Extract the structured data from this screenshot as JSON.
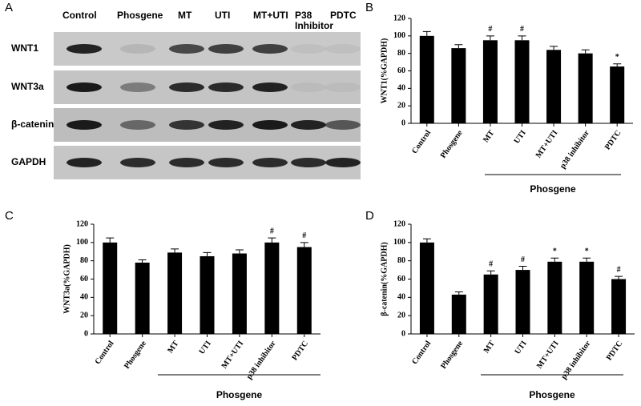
{
  "blot": {
    "panel": "A",
    "lanes": [
      "Control",
      "Phosgene",
      "MT",
      "UTI",
      "MT+UTI",
      "P38 Inhibitor",
      "PDTC"
    ],
    "rows": [
      "WNT1",
      "WNT3a",
      "β-catenin",
      "GAPDH"
    ]
  },
  "chart_data": [
    {
      "type": "bar",
      "panel": "B",
      "ylabel": "WNT1(%GAPDH)",
      "color": "#000000",
      "categories": [
        "Control",
        "Phosgene",
        "MT",
        "UTI",
        "MT+UTI",
        "p38 inhibitor",
        "PDTC"
      ],
      "values": [
        100,
        86,
        95,
        95,
        84,
        80,
        65
      ],
      "errors": [
        5,
        4,
        5,
        5,
        4,
        4,
        3
      ],
      "markers": [
        null,
        null,
        "#",
        "#",
        null,
        null,
        "*"
      ],
      "group_label": "Phosgene",
      "ylim": [
        0,
        120
      ],
      "yticks": [
        0,
        20,
        40,
        60,
        80,
        100,
        120
      ]
    },
    {
      "type": "bar",
      "panel": "C",
      "ylabel": "WNT3a(%GAPDH)",
      "color": "#000000",
      "categories": [
        "Control",
        "Phosgene",
        "MT",
        "UTI",
        "MT+UTI",
        "p38 inhibitor",
        "PDTC"
      ],
      "values": [
        100,
        78,
        89,
        85,
        88,
        100,
        95
      ],
      "errors": [
        5,
        3,
        4,
        4,
        4,
        5,
        5
      ],
      "markers": [
        null,
        null,
        null,
        null,
        null,
        "#",
        "#"
      ],
      "group_label": "Phosgene",
      "ylim": [
        0,
        120
      ],
      "yticks": [
        0,
        20,
        40,
        60,
        80,
        100,
        120
      ]
    },
    {
      "type": "bar",
      "panel": "D",
      "ylabel": "β-catenin(%GAPDH)",
      "color": "#000000",
      "categories": [
        "Control",
        "Phosgene",
        "MT",
        "UTI",
        "MT+UTI",
        "p38 inhibitor",
        "PDTC"
      ],
      "values": [
        100,
        43,
        65,
        70,
        79,
        79,
        60
      ],
      "errors": [
        4,
        3,
        4,
        4,
        4,
        4,
        3
      ],
      "markers": [
        null,
        null,
        "#",
        "#",
        "*",
        "*",
        "#"
      ],
      "group_label": "Phosgene",
      "ylim": [
        0,
        120
      ],
      "yticks": [
        0,
        20,
        40,
        60,
        80,
        100,
        120
      ]
    }
  ]
}
